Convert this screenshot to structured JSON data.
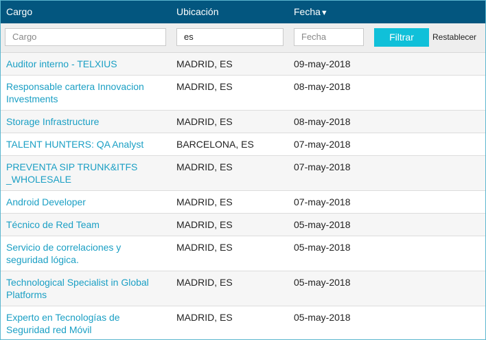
{
  "header": {
    "columns": [
      "Cargo",
      "Ubicación",
      "Fecha"
    ],
    "sort_indicator": "▼"
  },
  "filters": {
    "cargo_placeholder": "Cargo",
    "ubicacion_value": "es",
    "fecha_placeholder": "Fecha",
    "submit": "Filtrar",
    "reset": "Restablecer"
  },
  "rows": [
    [
      "Auditor interno - TELXIUS",
      "MADRID, ES",
      "09-may-2018"
    ],
    [
      "Responsable cartera Innovacion Investments",
      "MADRID, ES",
      "08-may-2018"
    ],
    [
      "Storage Infrastructure",
      "MADRID, ES",
      "08-may-2018"
    ],
    [
      "TALENT HUNTERS: QA Analyst",
      "BARCELONA, ES",
      "07-may-2018"
    ],
    [
      "PREVENTA SIP TRUNK&ITFS _WHOLESALE",
      "MADRID, ES",
      "07-may-2018"
    ],
    [
      "Android Developer",
      "MADRID, ES",
      "07-may-2018"
    ],
    [
      "Técnico de Red Team",
      "MADRID, ES",
      "05-may-2018"
    ],
    [
      "Servicio de correlaciones y seguridad lógica.",
      "MADRID, ES",
      "05-may-2018"
    ],
    [
      "Technological Specialist in Global Platforms",
      "MADRID, ES",
      "05-may-2018"
    ],
    [
      "Experto en Tecnologías de Seguridad red Móvil",
      "MADRID, ES",
      "05-may-2018"
    ]
  ]
}
